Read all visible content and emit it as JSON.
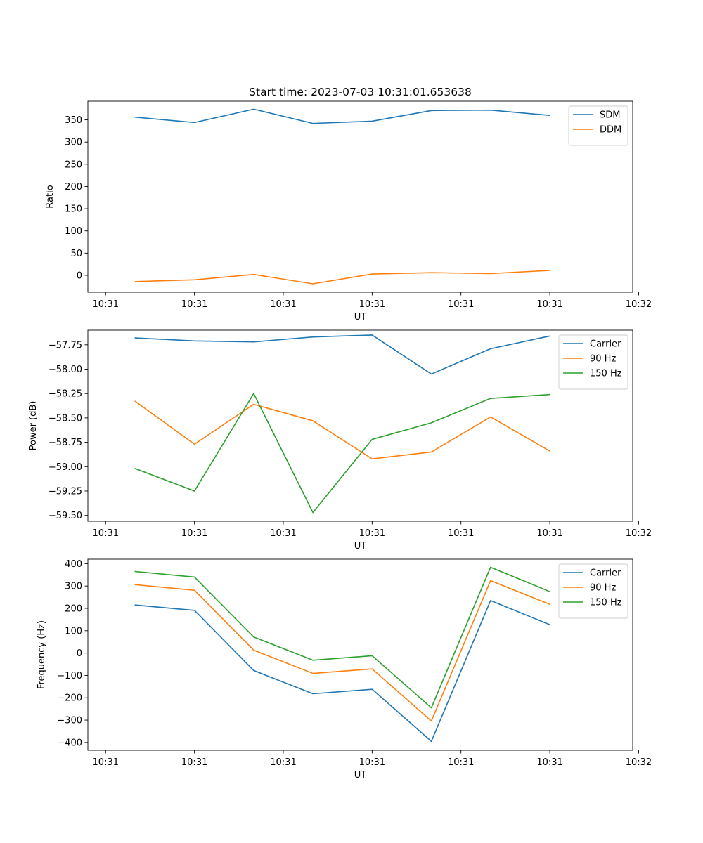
{
  "figure": {
    "title": "Start time: 2023-07-03 10:31:01.653638"
  },
  "chart_data": [
    {
      "type": "line",
      "title": "Start time: 2023-07-03 10:31:01.653638",
      "xlabel": "UT",
      "ylabel": "Ratio",
      "x": [
        1,
        2,
        3,
        4,
        5,
        6,
        7,
        8
      ],
      "xlim": [
        0.2,
        9.4
      ],
      "xticks": [
        0.5,
        2,
        3.5,
        5,
        6.5,
        8,
        9.5
      ],
      "xtick_labels": [
        "10:31",
        "10:31",
        "10:31",
        "10:31",
        "10:31",
        "10:31",
        "10:32"
      ],
      "ylim": [
        -38,
        392
      ],
      "yticks": [
        0,
        50,
        100,
        150,
        200,
        250,
        300,
        350
      ],
      "ytick_labels": [
        "0",
        "50",
        "100",
        "150",
        "200",
        "250",
        "300",
        "350"
      ],
      "legend": "top-right",
      "grid": false,
      "series": [
        {
          "name": "SDM",
          "color": "#1f77b4",
          "values": [
            356,
            344,
            374,
            342,
            347,
            371,
            372,
            360
          ]
        },
        {
          "name": "DDM",
          "color": "#ff7f0e",
          "values": [
            -14,
            -10,
            2,
            -19,
            3,
            6,
            4,
            11
          ]
        }
      ]
    },
    {
      "type": "line",
      "title": "",
      "xlabel": "UT",
      "ylabel": "Power (dB)",
      "x": [
        1,
        2,
        3,
        4,
        5,
        6,
        7,
        8
      ],
      "xlim": [
        0.2,
        9.4
      ],
      "xticks": [
        0.5,
        2,
        3.5,
        5,
        6.5,
        8,
        9.5
      ],
      "xtick_labels": [
        "10:31",
        "10:31",
        "10:31",
        "10:31",
        "10:31",
        "10:31",
        "10:32"
      ],
      "ylim": [
        -59.56,
        -57.6
      ],
      "yticks": [
        -59.5,
        -59.25,
        -59.0,
        -58.75,
        -58.5,
        -58.25,
        -58.0,
        -57.75
      ],
      "ytick_labels": [
        "−59.50",
        "−59.25",
        "−59.00",
        "−58.75",
        "−58.50",
        "−58.25",
        "−58.00",
        "−57.75"
      ],
      "legend": "top-right",
      "grid": false,
      "series": [
        {
          "name": "Carrier",
          "color": "#1f77b4",
          "values": [
            -57.68,
            -57.71,
            -57.72,
            -57.67,
            -57.65,
            -58.05,
            -57.79,
            -57.66
          ]
        },
        {
          "name": "90 Hz",
          "color": "#ff7f0e",
          "values": [
            -58.33,
            -58.77,
            -58.36,
            -58.53,
            -58.92,
            -58.85,
            -58.49,
            -58.84
          ]
        },
        {
          "name": "150 Hz",
          "color": "#2ca02c",
          "values": [
            -59.02,
            -59.25,
            -58.25,
            -59.47,
            -58.72,
            -58.55,
            -58.3,
            -58.26
          ]
        }
      ]
    },
    {
      "type": "line",
      "title": "",
      "xlabel": "UT",
      "ylabel": "Frequency (Hz)",
      "x": [
        1,
        2,
        3,
        4,
        5,
        6,
        7,
        8
      ],
      "xlim": [
        0.2,
        9.4
      ],
      "xticks": [
        0.5,
        2,
        3.5,
        5,
        6.5,
        8,
        9.5
      ],
      "xtick_labels": [
        "10:31",
        "10:31",
        "10:31",
        "10:31",
        "10:31",
        "10:31",
        "10:32"
      ],
      "ylim": [
        -435,
        420
      ],
      "yticks": [
        -400,
        -300,
        -200,
        -100,
        0,
        100,
        200,
        300,
        400
      ],
      "ytick_labels": [
        "−400",
        "−300",
        "−200",
        "−100",
        "0",
        "100",
        "200",
        "300",
        "400"
      ],
      "legend": "top-right",
      "grid": false,
      "series": [
        {
          "name": "Carrier",
          "color": "#1f77b4",
          "values": [
            215,
            191,
            -78,
            -182,
            -162,
            -395,
            235,
            127
          ]
        },
        {
          "name": "90 Hz",
          "color": "#ff7f0e",
          "values": [
            306,
            281,
            13,
            -91,
            -71,
            -304,
            324,
            218
          ]
        },
        {
          "name": "150 Hz",
          "color": "#2ca02c",
          "values": [
            365,
            340,
            72,
            -32,
            -12,
            -245,
            384,
            275
          ]
        }
      ]
    }
  ]
}
